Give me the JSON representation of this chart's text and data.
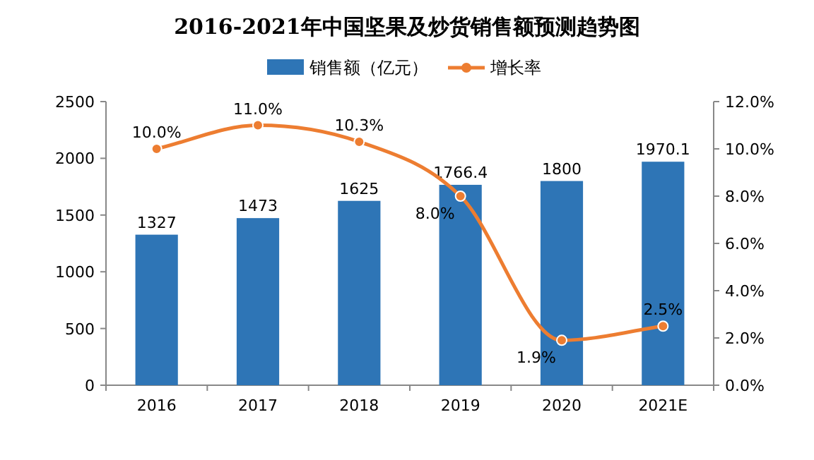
{
  "chart_data": {
    "type": "bar",
    "title": "2016-2021年中国坚果及炒货销售额预测趋势图",
    "categories": [
      "2016",
      "2017",
      "2018",
      "2019",
      "2020",
      "2021E"
    ],
    "series": [
      {
        "name": "销售额（亿元）",
        "color": "#2e75b6",
        "values": [
          1327,
          1473,
          1625,
          1766.4,
          1800,
          1970.1
        ],
        "value_labels": [
          "1327",
          "1473",
          "1625",
          "1766.4",
          "1800",
          "1970.1"
        ]
      },
      {
        "name": "增长率",
        "type": "line",
        "axis": "y2",
        "color": "#ed7d31",
        "marker": "circle",
        "values": [
          10.0,
          11.0,
          10.3,
          8.0,
          1.9,
          2.5
        ],
        "value_labels": [
          "10.0%",
          "11.0%",
          "10.3%",
          "8.0%",
          "1.9%",
          "2.5%"
        ]
      }
    ],
    "ylim": [
      0,
      2500
    ],
    "yticks": [
      0,
      500,
      1000,
      1500,
      2000,
      2500
    ],
    "y2lim": [
      0,
      12
    ],
    "y2ticks": [
      {
        "value": 0,
        "label": "0.0%"
      },
      {
        "value": 2,
        "label": "2.0%"
      },
      {
        "value": 4,
        "label": "4.0%"
      },
      {
        "value": 6,
        "label": "6.0%"
      },
      {
        "value": 8,
        "label": "8.0%"
      },
      {
        "value": 10,
        "label": "10.0%"
      },
      {
        "value": 12,
        "label": "12.0%"
      }
    ],
    "legend": "top",
    "grid": false
  }
}
